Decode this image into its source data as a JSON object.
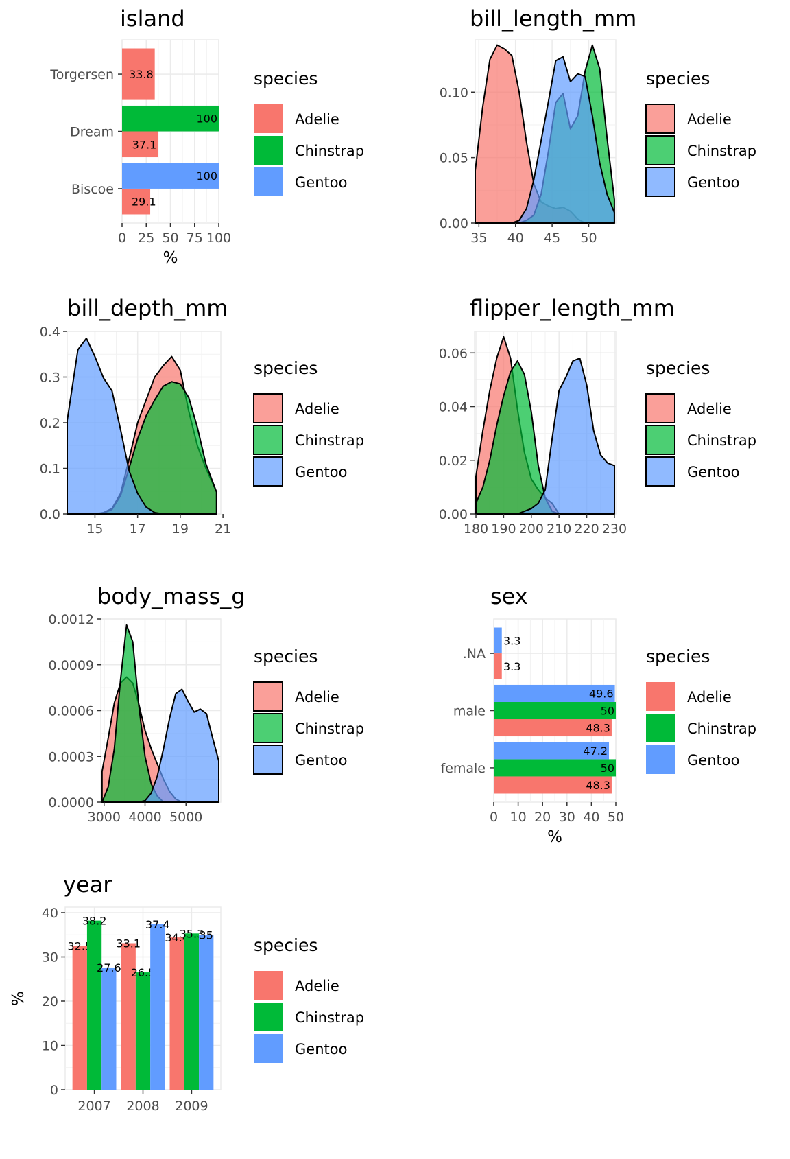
{
  "colors": {
    "Adelie": "#F8766D",
    "Chinstrap": "#00BA38",
    "Gentoo": "#619CFF"
  },
  "legend": {
    "title": "species",
    "items": [
      "Adelie",
      "Chinstrap",
      "Gentoo"
    ]
  },
  "chart_data": [
    {
      "id": "island",
      "type": "bar",
      "orientation": "horizontal",
      "title": "island",
      "xlabel": "%",
      "ylabel": "",
      "categories": [
        "Biscoe",
        "Dream",
        "Torgersen"
      ],
      "series": [
        {
          "name": "Adelie",
          "values": [
            29.1,
            37.1,
            33.8
          ],
          "labels": [
            "29.1",
            "37.1",
            "33.8"
          ]
        },
        {
          "name": "Chinstrap",
          "values": [
            null,
            100,
            null
          ],
          "labels": [
            "",
            "100",
            ""
          ]
        },
        {
          "name": "Gentoo",
          "values": [
            100,
            null,
            null
          ],
          "labels": [
            "100",
            "",
            ""
          ]
        }
      ],
      "xlim": [
        0,
        100
      ],
      "xticks": [
        0,
        25,
        50,
        75,
        100
      ],
      "xtick_labels": [
        "0",
        "25",
        "50",
        "75",
        "100"
      ],
      "grid": true,
      "legend_position": "right"
    },
    {
      "id": "bill_length_mm",
      "type": "area",
      "title": "bill_length_mm",
      "xlabel": "",
      "ylabel": "",
      "x": [
        34.5,
        35.5,
        36.5,
        37.5,
        38.5,
        39.5,
        40.5,
        41.5,
        42.5,
        43.5,
        44.5,
        45.5,
        46.5,
        47.5,
        48.5,
        49.5,
        50.5,
        51.5,
        52.5,
        53.5
      ],
      "series": [
        {
          "name": "Adelie",
          "values": [
            0.04,
            0.088,
            0.125,
            0.136,
            0.133,
            0.128,
            0.1,
            0.062,
            0.03,
            0.016,
            0.013,
            0.011,
            0.012,
            0.009,
            0.003,
            0.0,
            0.0,
            0.0,
            0.0,
            0.0
          ]
        },
        {
          "name": "Chinstrap",
          "values": [
            0.0,
            0.0,
            0.0,
            0.0,
            0.0,
            0.0,
            0.0,
            0.002,
            0.006,
            0.022,
            0.055,
            0.092,
            0.099,
            0.072,
            0.082,
            0.116,
            0.136,
            0.118,
            0.065,
            0.018
          ]
        },
        {
          "name": "Gentoo",
          "values": [
            0.0,
            0.0,
            0.0,
            0.0,
            0.0,
            0.0,
            0.002,
            0.011,
            0.033,
            0.063,
            0.093,
            0.124,
            0.127,
            0.108,
            0.114,
            0.112,
            0.082,
            0.046,
            0.022,
            0.008
          ]
        }
      ],
      "xlim": [
        34.5,
        53.7
      ],
      "ylim": [
        0,
        0.14
      ],
      "xticks": [
        35,
        40,
        45,
        50
      ],
      "yticks": [
        0,
        0.05,
        0.1
      ],
      "ytick_labels": [
        "0.00",
        "0.05",
        "0.10"
      ],
      "grid": true,
      "legend_position": "right"
    },
    {
      "id": "bill_depth_mm",
      "type": "area",
      "title": "bill_depth_mm",
      "xlabel": "",
      "ylabel": "",
      "x": [
        13.7,
        14.2,
        14.6,
        15.0,
        15.4,
        15.8,
        16.2,
        16.6,
        17.0,
        17.4,
        17.8,
        18.2,
        18.6,
        19.0,
        19.4,
        19.8,
        20.2,
        20.7
      ],
      "series": [
        {
          "name": "Adelie",
          "values": [
            0.0,
            0.0,
            0.0,
            0.0,
            0.003,
            0.012,
            0.045,
            0.12,
            0.2,
            0.25,
            0.3,
            0.325,
            0.345,
            0.315,
            0.225,
            0.15,
            0.1,
            0.048
          ]
        },
        {
          "name": "Chinstrap",
          "values": [
            0.0,
            0.0,
            0.0,
            0.0,
            0.002,
            0.01,
            0.04,
            0.1,
            0.165,
            0.215,
            0.25,
            0.28,
            0.29,
            0.285,
            0.255,
            0.19,
            0.11,
            0.048
          ]
        },
        {
          "name": "Gentoo",
          "values": [
            0.205,
            0.36,
            0.385,
            0.345,
            0.298,
            0.27,
            0.185,
            0.095,
            0.045,
            0.015,
            0.003,
            0.0,
            0.0,
            0.0,
            0.0,
            0.0,
            0.0,
            0.0
          ]
        }
      ],
      "xlim": [
        13.7,
        20.9
      ],
      "ylim": [
        0,
        0.4
      ],
      "xticks": [
        15,
        17,
        19,
        21
      ],
      "yticks": [
        0,
        0.1,
        0.2,
        0.3,
        0.4
      ],
      "ytick_labels": [
        "0.0",
        "0.1",
        "0.2",
        "0.3",
        "0.4"
      ],
      "grid": true,
      "legend_position": "right"
    },
    {
      "id": "flipper_length_mm",
      "type": "area",
      "title": "flipper_length_mm",
      "xlabel": "",
      "ylabel": "",
      "x": [
        180,
        182.5,
        185,
        187.5,
        190,
        192.5,
        195,
        197.5,
        200,
        202.5,
        205,
        207.5,
        210,
        212.5,
        215,
        217.5,
        220,
        222.5,
        225,
        227.5,
        230
      ],
      "series": [
        {
          "name": "Adelie",
          "values": [
            0.014,
            0.031,
            0.046,
            0.058,
            0.066,
            0.058,
            0.039,
            0.023,
            0.013,
            0.009,
            0.006,
            0.004,
            0.0,
            0.0,
            0.0,
            0.0,
            0.0,
            0.0,
            0.0,
            0.0,
            0.0
          ]
        },
        {
          "name": "Chinstrap",
          "values": [
            0.004,
            0.01,
            0.02,
            0.033,
            0.044,
            0.053,
            0.057,
            0.052,
            0.038,
            0.018,
            0.006,
            0.001,
            0.0,
            0.0,
            0.0,
            0.0,
            0.0,
            0.0,
            0.0,
            0.0,
            0.0
          ]
        },
        {
          "name": "Gentoo",
          "values": [
            0.0,
            0.0,
            0.0,
            0.0,
            0.0,
            0.0,
            0.0,
            0.001,
            0.002,
            0.004,
            0.009,
            0.028,
            0.046,
            0.051,
            0.057,
            0.058,
            0.048,
            0.031,
            0.022,
            0.019,
            0.018
          ]
        }
      ],
      "xlim": [
        179.5,
        230.5
      ],
      "ylim": [
        0,
        0.068
      ],
      "xticks": [
        180,
        190,
        200,
        210,
        220,
        230
      ],
      "yticks": [
        0,
        0.02,
        0.04,
        0.06
      ],
      "ytick_labels": [
        "0.00",
        "0.02",
        "0.04",
        "0.06"
      ],
      "grid": true,
      "legend_position": "right"
    },
    {
      "id": "body_mass_g",
      "type": "area",
      "title": "body_mass_g",
      "xlabel": "",
      "ylabel": "",
      "x": [
        2950,
        3100,
        3250,
        3400,
        3550,
        3700,
        3850,
        4000,
        4150,
        4300,
        4450,
        4600,
        4750,
        4900,
        5050,
        5200,
        5350,
        5500,
        5650,
        5800
      ],
      "series": [
        {
          "name": "Adelie",
          "values": [
            0.0002,
            0.00042,
            0.00065,
            0.00078,
            0.00082,
            0.00078,
            0.00064,
            0.00047,
            0.00035,
            0.00025,
            0.00015,
            7e-05,
            2e-05,
            0.0,
            0.0,
            0.0,
            0.0,
            0.0,
            0.0,
            0.0
          ]
        },
        {
          "name": "Chinstrap",
          "values": [
            0.0,
            0.0001,
            0.00035,
            0.0008,
            0.00116,
            0.00105,
            0.00063,
            0.0003,
            0.00012,
            4e-05,
            0.0,
            0.0,
            0.0,
            0.0,
            0.0,
            0.0,
            0.0,
            0.0,
            0.0,
            0.0
          ]
        },
        {
          "name": "Gentoo",
          "values": [
            0.0,
            0.0,
            0.0,
            0.0,
            0.0,
            0.0,
            0.0,
            1e-05,
            6e-05,
            0.00017,
            0.00035,
            0.00055,
            0.00071,
            0.00074,
            0.00066,
            0.00059,
            0.00061,
            0.00058,
            0.00042,
            0.00027
          ]
        }
      ],
      "xlim": [
        2920,
        5850
      ],
      "ylim": [
        0,
        0.0012
      ],
      "xticks": [
        3000,
        4000,
        5000
      ],
      "yticks": [
        0,
        0.0003,
        0.0006,
        0.0009,
        0.0012
      ],
      "ytick_labels": [
        "0.0000",
        "0.0003",
        "0.0006",
        "0.0009",
        "0.0012"
      ],
      "grid": true,
      "legend_position": "right"
    },
    {
      "id": "sex",
      "type": "bar",
      "orientation": "horizontal",
      "title": "sex",
      "xlabel": "%",
      "ylabel": "",
      "categories": [
        "female",
        "male",
        ".NA"
      ],
      "series": [
        {
          "name": "Adelie",
          "values": [
            48.3,
            48.3,
            3.3
          ],
          "labels": [
            "48.3",
            "48.3",
            "3.3"
          ]
        },
        {
          "name": "Chinstrap",
          "values": [
            50,
            50,
            null
          ],
          "labels": [
            "50",
            "50",
            ""
          ]
        },
        {
          "name": "Gentoo",
          "values": [
            47.2,
            49.6,
            3.3
          ],
          "labels": [
            "47.2",
            "49.6",
            "3.3"
          ]
        }
      ],
      "xlim": [
        0,
        50
      ],
      "xticks": [
        0,
        10,
        20,
        30,
        40,
        50
      ],
      "xtick_labels": [
        "0",
        "10",
        "20",
        "30",
        "40",
        "50"
      ],
      "grid": true,
      "legend_position": "right"
    },
    {
      "id": "year",
      "type": "bar",
      "orientation": "vertical",
      "title": "year",
      "xlabel": "",
      "ylabel": "%",
      "categories": [
        "2007",
        "2008",
        "2009"
      ],
      "series": [
        {
          "name": "Adelie",
          "values": [
            32.5,
            33.1,
            34.4
          ],
          "labels": [
            "32.5",
            "33.1",
            "34.4"
          ]
        },
        {
          "name": "Chinstrap",
          "values": [
            38.2,
            26.5,
            35.3
          ],
          "labels": [
            "38.2",
            "26.5",
            "35.3"
          ]
        },
        {
          "name": "Gentoo",
          "values": [
            27.6,
            37.4,
            35
          ],
          "labels": [
            "27.6",
            "37.4",
            "35"
          ]
        }
      ],
      "ylim": [
        0,
        40
      ],
      "yticks": [
        0,
        10,
        20,
        30,
        40
      ],
      "ytick_labels": [
        "0",
        "10",
        "20",
        "30",
        "40"
      ],
      "grid": true,
      "legend_position": "right"
    }
  ]
}
